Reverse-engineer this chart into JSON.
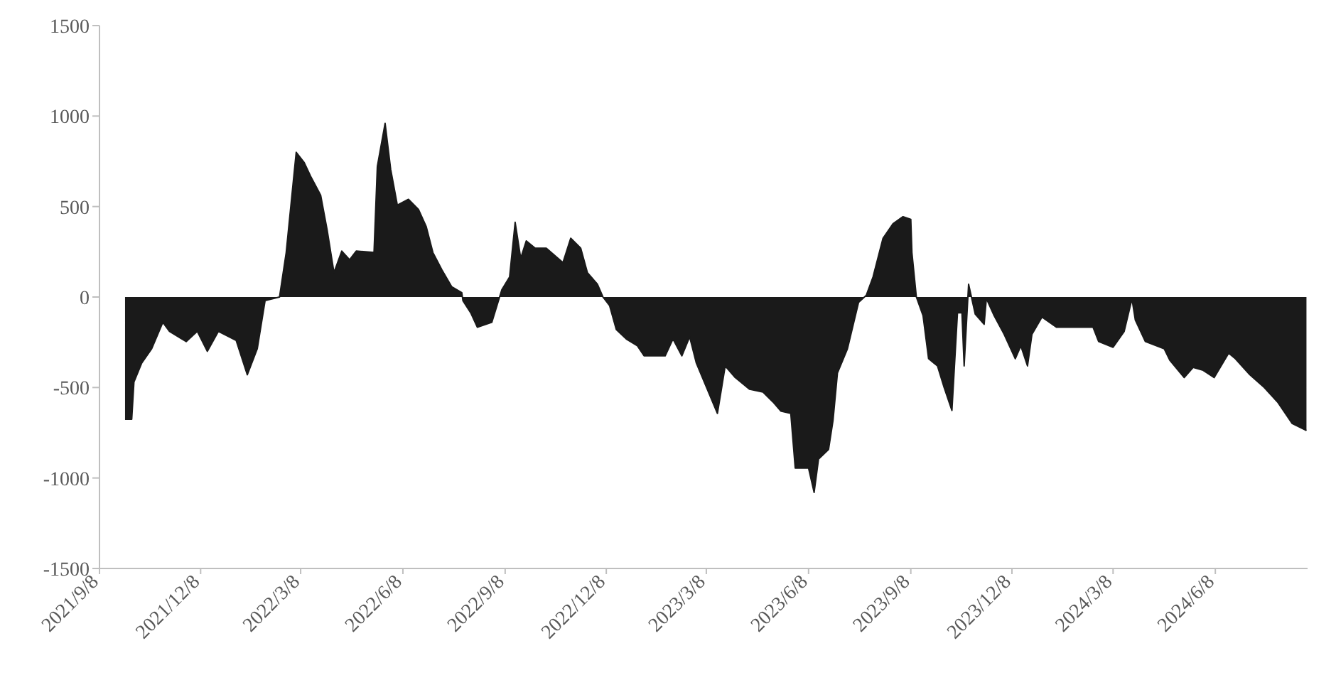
{
  "chart_data": {
    "type": "area",
    "color": "#1a1a1a",
    "x": [
      "2021-10-01",
      "2021-10-07",
      "2021-10-09",
      "2021-10-16",
      "2021-10-25",
      "2021-11-04",
      "2021-11-10",
      "2021-11-25",
      "2021-12-05",
      "2021-12-14",
      "2021-12-24",
      "2022-01-09",
      "2022-01-19",
      "2022-01-28",
      "2022-02-04",
      "2022-02-17",
      "2022-02-23",
      "2022-03-04",
      "2022-03-11",
      "2022-03-17",
      "2022-03-26",
      "2022-04-01",
      "2022-04-07",
      "2022-04-14",
      "2022-04-21",
      "2022-04-27",
      "2022-05-13",
      "2022-05-16",
      "2022-05-23",
      "2022-05-28",
      "2022-06-03",
      "2022-06-13",
      "2022-06-22",
      "2022-06-29",
      "2022-07-05",
      "2022-07-13",
      "2022-07-22",
      "2022-07-31",
      "2022-08-01",
      "2022-08-08",
      "2022-08-14",
      "2022-08-27",
      "2022-09-05",
      "2022-09-12",
      "2022-09-17",
      "2022-09-22",
      "2022-09-27",
      "2022-10-05",
      "2022-10-15",
      "2022-10-30",
      "2022-11-06",
      "2022-11-15",
      "2022-11-21",
      "2022-11-30",
      "2022-12-05",
      "2022-12-11",
      "2022-12-17",
      "2022-12-26",
      "2023-01-05",
      "2023-01-11",
      "2023-01-30",
      "2023-02-06",
      "2023-02-14",
      "2023-02-21",
      "2023-02-27",
      "2023-03-18",
      "2023-03-25",
      "2023-04-03",
      "2023-04-16",
      "2023-04-28",
      "2023-05-07",
      "2023-05-14",
      "2023-05-23",
      "2023-05-27",
      "2023-06-08",
      "2023-06-13",
      "2023-06-17",
      "2023-06-26",
      "2023-06-30",
      "2023-07-04",
      "2023-07-13",
      "2023-07-23",
      "2023-07-30",
      "2023-08-05",
      "2023-08-14",
      "2023-08-23",
      "2023-09-01",
      "2023-09-08",
      "2023-09-09",
      "2023-09-13",
      "2023-09-19",
      "2023-09-24",
      "2023-10-02",
      "2023-10-08",
      "2023-10-15",
      "2023-10-20",
      "2023-10-24",
      "2023-10-26",
      "2023-10-30",
      "2023-11-05",
      "2023-11-13",
      "2023-11-15",
      "2023-11-22",
      "2023-12-01",
      "2023-12-11",
      "2023-12-16",
      "2023-12-22",
      "2023-12-26",
      "2024-01-04",
      "2024-01-17",
      "2024-02-19",
      "2024-02-24",
      "2024-03-08",
      "2024-03-18",
      "2024-03-25",
      "2024-03-28",
      "2024-04-06",
      "2024-04-23",
      "2024-04-28",
      "2024-05-11",
      "2024-05-19",
      "2024-05-28",
      "2024-06-07",
      "2024-06-20",
      "2024-06-26",
      "2024-07-09",
      "2024-07-22",
      "2024-08-03",
      "2024-08-16",
      "2024-08-29"
    ],
    "values": [
      -675,
      -675,
      -470,
      -365,
      -285,
      -140,
      -190,
      -246,
      -190,
      -300,
      -190,
      -240,
      -430,
      -285,
      -20,
      0,
      246,
      800,
      745,
      667,
      563,
      365,
      135,
      254,
      206,
      254,
      246,
      722,
      960,
      706,
      508,
      540,
      484,
      389,
      246,
      151,
      56,
      24,
      -20,
      -87,
      -167,
      -140,
      40,
      111,
      413,
      214,
      310,
      270,
      270,
      190,
      325,
      270,
      135,
      71,
      0,
      -48,
      -180,
      -232,
      -270,
      -325,
      -325,
      -232,
      -325,
      -220,
      -365,
      -643,
      -381,
      -445,
      -510,
      -525,
      -580,
      -630,
      -643,
      -945,
      -945,
      -1080,
      -895,
      -842,
      -683,
      -420,
      -286,
      -30,
      10,
      111,
      325,
      405,
      444,
      429,
      246,
      0,
      -103,
      -341,
      -381,
      -500,
      -627,
      -87,
      -87,
      -381,
      71,
      -95,
      -151,
      -8,
      -103,
      -206,
      -341,
      -270,
      -381,
      -206,
      -111,
      -167,
      -167,
      -246,
      -278,
      -190,
      -10,
      -127,
      -246,
      -286,
      -349,
      -445,
      -389,
      -405,
      -445,
      -310,
      -341,
      -429,
      -500,
      -580,
      -698,
      -738
    ],
    "xlim": [
      "2021-09-08",
      "2024-08-30"
    ],
    "xticks": [
      {
        "value": "2021-09-08",
        "label": "2021/9/8"
      },
      {
        "value": "2021-12-08",
        "label": "2021/12/8"
      },
      {
        "value": "2022-03-08",
        "label": "2022/3/8"
      },
      {
        "value": "2022-06-08",
        "label": "2022/6/8"
      },
      {
        "value": "2022-09-08",
        "label": "2022/9/8"
      },
      {
        "value": "2022-12-08",
        "label": "2022/12/8"
      },
      {
        "value": "2023-03-08",
        "label": "2023/3/8"
      },
      {
        "value": "2023-06-08",
        "label": "2023/6/8"
      },
      {
        "value": "2023-09-08",
        "label": "2023/9/8"
      },
      {
        "value": "2023-12-08",
        "label": "2023/12/8"
      },
      {
        "value": "2024-03-08",
        "label": "2024/3/8"
      },
      {
        "value": "2024-06-08",
        "label": "2024/6/8"
      }
    ],
    "ylim": [
      -1500,
      1500
    ],
    "yticks": [
      -1500,
      -1000,
      -500,
      0,
      500,
      1000,
      1500
    ]
  }
}
